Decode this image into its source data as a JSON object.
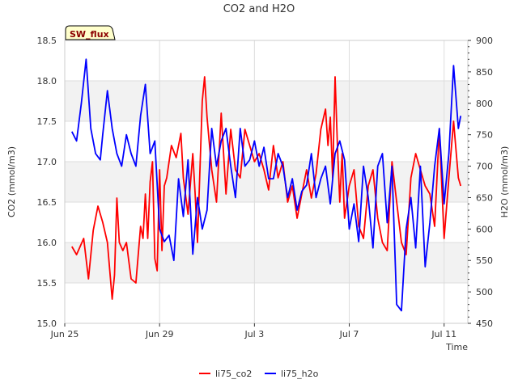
{
  "chart_data": {
    "type": "line",
    "title": "CO2 and H2O",
    "badge": "SW_flux",
    "xlabel": "Time",
    "ylabel": "CO2 (mmol/m3)",
    "ylabel_right": "H2O (mmol/m3)",
    "xlim": [
      0,
      17
    ],
    "ylim": [
      15.0,
      18.5
    ],
    "ylim_right": [
      450,
      900
    ],
    "x_ticks": [
      {
        "value": 0,
        "label": "Jun 25"
      },
      {
        "value": 4,
        "label": "Jun 29"
      },
      {
        "value": 8,
        "label": "Jul 3"
      },
      {
        "value": 12,
        "label": "Jul 7"
      },
      {
        "value": 16,
        "label": "Jul 11"
      }
    ],
    "y_ticks": [
      "15.0",
      "15.5",
      "16.0",
      "16.5",
      "17.0",
      "17.5",
      "18.0",
      "18.5"
    ],
    "y_ticks_right": [
      "450",
      "500",
      "550",
      "600",
      "650",
      "700",
      "750",
      "800",
      "850",
      "900"
    ],
    "bands": [
      [
        15.5,
        16.0
      ],
      [
        16.5,
        17.0
      ],
      [
        17.5,
        18.0
      ]
    ],
    "colors": {
      "co2": "#ff0000",
      "h2o": "#0000ff",
      "band": "#f2f2f2",
      "grid": "#dddddd",
      "badge_fill": "#ffffcc"
    },
    "series": [
      {
        "name": "li75_co2",
        "axis": "left",
        "x": [
          0.3,
          0.5,
          0.8,
          1.0,
          1.2,
          1.4,
          1.6,
          1.8,
          2.0,
          2.1,
          2.2,
          2.3,
          2.45,
          2.6,
          2.8,
          3.0,
          3.2,
          3.3,
          3.4,
          3.5,
          3.6,
          3.7,
          3.8,
          3.9,
          4.0,
          4.1,
          4.2,
          4.3,
          4.5,
          4.7,
          4.9,
          5.0,
          5.2,
          5.4,
          5.5,
          5.6,
          5.8,
          5.9,
          6.0,
          6.2,
          6.4,
          6.6,
          6.8,
          7.0,
          7.2,
          7.4,
          7.6,
          7.8,
          8.0,
          8.2,
          8.4,
          8.6,
          8.8,
          9.0,
          9.2,
          9.4,
          9.6,
          9.8,
          10.0,
          10.2,
          10.4,
          10.6,
          10.8,
          11.0,
          11.1,
          11.2,
          11.3,
          11.4,
          11.5,
          11.6,
          11.7,
          11.8,
          12.0,
          12.2,
          12.4,
          12.6,
          12.8,
          13.0,
          13.2,
          13.4,
          13.6,
          13.8,
          14.0,
          14.2,
          14.4,
          14.6,
          14.8,
          15.0,
          15.2,
          15.4,
          15.6,
          15.8,
          16.0,
          16.2,
          16.4,
          16.6,
          16.7
        ],
        "values": [
          15.95,
          15.85,
          16.05,
          15.55,
          16.15,
          16.45,
          16.25,
          16.0,
          15.3,
          15.6,
          16.55,
          16.0,
          15.9,
          16.0,
          15.55,
          15.5,
          16.2,
          16.05,
          16.6,
          16.05,
          16.75,
          17.0,
          15.8,
          15.65,
          16.9,
          15.9,
          16.7,
          16.8,
          17.2,
          17.05,
          17.35,
          16.8,
          16.35,
          17.1,
          16.6,
          16.0,
          17.75,
          18.05,
          17.55,
          16.9,
          16.5,
          17.6,
          16.6,
          17.4,
          16.9,
          16.8,
          17.4,
          17.2,
          17.0,
          17.1,
          16.9,
          16.65,
          17.2,
          16.8,
          17.0,
          16.5,
          16.7,
          16.3,
          16.6,
          16.9,
          16.55,
          16.85,
          17.4,
          17.65,
          17.2,
          17.55,
          16.8,
          18.05,
          17.2,
          16.5,
          17.1,
          16.3,
          16.7,
          16.9,
          16.2,
          16.05,
          16.7,
          16.9,
          16.3,
          16.0,
          15.9,
          17.0,
          16.5,
          16.0,
          15.85,
          16.8,
          17.1,
          16.9,
          16.7,
          16.6,
          16.2,
          17.4,
          16.05,
          16.8,
          17.5,
          16.8,
          16.7
        ]
      },
      {
        "name": "li75_h2o",
        "axis": "right",
        "x": [
          0.3,
          0.5,
          0.7,
          0.9,
          1.1,
          1.3,
          1.5,
          1.6,
          1.8,
          2.0,
          2.2,
          2.4,
          2.6,
          2.8,
          3.0,
          3.2,
          3.4,
          3.6,
          3.8,
          4.0,
          4.2,
          4.4,
          4.6,
          4.8,
          5.0,
          5.2,
          5.4,
          5.6,
          5.8,
          6.0,
          6.2,
          6.4,
          6.6,
          6.8,
          7.0,
          7.2,
          7.4,
          7.6,
          7.8,
          8.0,
          8.2,
          8.4,
          8.6,
          8.8,
          9.0,
          9.2,
          9.4,
          9.6,
          9.8,
          10.0,
          10.2,
          10.4,
          10.6,
          10.8,
          11.0,
          11.2,
          11.4,
          11.6,
          11.8,
          12.0,
          12.2,
          12.4,
          12.6,
          12.8,
          13.0,
          13.2,
          13.4,
          13.6,
          13.8,
          14.0,
          14.2,
          14.4,
          14.6,
          14.8,
          15.0,
          15.2,
          15.4,
          15.6,
          15.8,
          16.0,
          16.2,
          16.4,
          16.6,
          16.7
        ],
        "values": [
          755,
          740,
          800,
          870,
          760,
          720,
          710,
          750,
          820,
          760,
          720,
          700,
          750,
          720,
          700,
          780,
          830,
          720,
          740,
          600,
          580,
          590,
          550,
          680,
          620,
          710,
          560,
          650,
          600,
          630,
          760,
          700,
          740,
          760,
          700,
          650,
          760,
          700,
          710,
          740,
          700,
          730,
          680,
          680,
          720,
          700,
          650,
          680,
          630,
          660,
          670,
          720,
          650,
          680,
          700,
          640,
          720,
          740,
          710,
          600,
          640,
          580,
          700,
          650,
          570,
          700,
          720,
          610,
          700,
          480,
          470,
          600,
          650,
          570,
          700,
          540,
          610,
          700,
          760,
          640,
          720,
          860,
          760,
          780
        ]
      }
    ]
  },
  "legend": {
    "co2_label": "li75_co2",
    "h2o_label": "li75_h2o"
  }
}
